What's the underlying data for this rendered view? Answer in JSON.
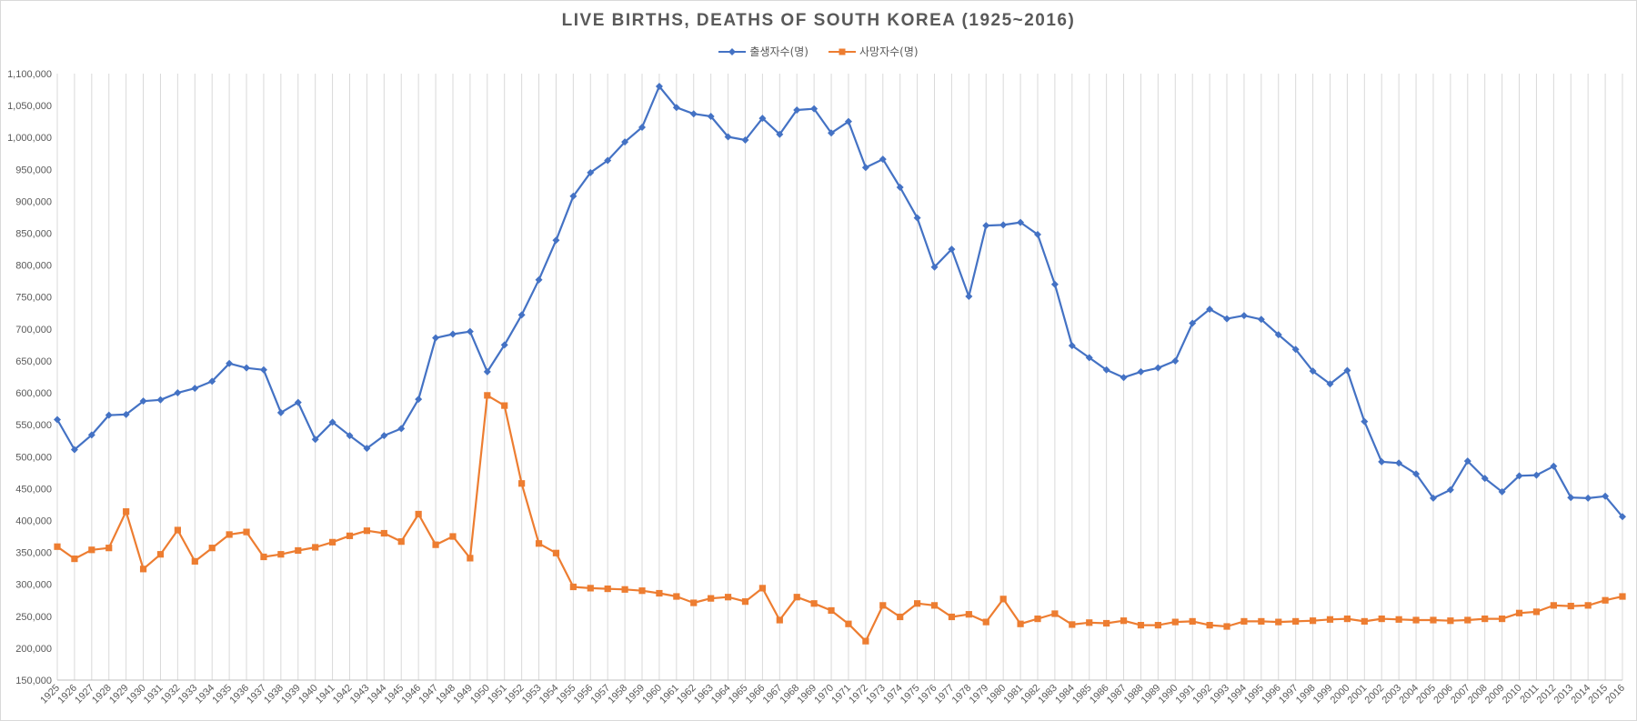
{
  "colors": {
    "births": "#4472c4",
    "deaths": "#ed7d31",
    "grid": "#d9d9d9"
  },
  "chart_data": {
    "type": "line",
    "title": "LIVE BIRTHS, DEATHS OF SOUTH KOREA (1925~2016)",
    "xlabel": "",
    "ylabel": "",
    "ylim": [
      150000,
      1100000
    ],
    "ytick_step": 50000,
    "grid": "vertical",
    "legend": "top-center",
    "x": [
      1925,
      1926,
      1927,
      1928,
      1929,
      1930,
      1931,
      1932,
      1933,
      1934,
      1935,
      1936,
      1937,
      1938,
      1939,
      1940,
      1941,
      1942,
      1943,
      1944,
      1945,
      1946,
      1947,
      1948,
      1949,
      1950,
      1951,
      1952,
      1953,
      1954,
      1955,
      1956,
      1957,
      1958,
      1959,
      1960,
      1961,
      1962,
      1963,
      1964,
      1965,
      1966,
      1967,
      1968,
      1969,
      1970,
      1971,
      1972,
      1973,
      1974,
      1975,
      1976,
      1977,
      1978,
      1979,
      1980,
      1981,
      1982,
      1983,
      1984,
      1985,
      1986,
      1987,
      1988,
      1989,
      1990,
      1991,
      1992,
      1993,
      1994,
      1995,
      1996,
      1997,
      1998,
      1999,
      2000,
      2001,
      2002,
      2003,
      2004,
      2005,
      2006,
      2007,
      2008,
      2009,
      2010,
      2011,
      2012,
      2013,
      2014,
      2015,
      2016
    ],
    "series": [
      {
        "name": "출생자수(명)",
        "marker": "diamond",
        "values": [
          558000,
          511000,
          534000,
          565000,
          566000,
          587000,
          589000,
          600000,
          607000,
          618000,
          646000,
          639000,
          636000,
          569000,
          585000,
          527000,
          554000,
          533000,
          513000,
          533000,
          544000,
          590000,
          686000,
          692000,
          696000,
          633000,
          675000,
          722000,
          777000,
          839000,
          908000,
          945000,
          964000,
          993000,
          1016000,
          1080000,
          1047000,
          1037000,
          1033000,
          1001000,
          996000,
          1030000,
          1005000,
          1043000,
          1045000,
          1007000,
          1025000,
          953000,
          966000,
          922000,
          874000,
          797000,
          825000,
          751000,
          862000,
          863000,
          867000,
          848000,
          770000,
          674000,
          655000,
          636000,
          624000,
          633000,
          639000,
          650000,
          709000,
          731000,
          716000,
          721000,
          715000,
          691000,
          668000,
          634000,
          614000,
          635000,
          555000,
          492000,
          490000,
          473000,
          435000,
          448000,
          493000,
          466000,
          445000,
          470000,
          471000,
          485000,
          436000,
          435000,
          438000,
          406000
        ]
      },
      {
        "name": "사망자수(명)",
        "marker": "square",
        "values": [
          359000,
          340000,
          354000,
          357000,
          414000,
          324000,
          347000,
          385000,
          336000,
          357000,
          378000,
          382000,
          343000,
          347000,
          353000,
          358000,
          366000,
          376000,
          384000,
          380000,
          367000,
          410000,
          362000,
          375000,
          341000,
          596000,
          580000,
          458000,
          364000,
          349000,
          296000,
          294000,
          293000,
          292000,
          290000,
          286000,
          281000,
          271000,
          278000,
          280000,
          273000,
          294000,
          244000,
          280000,
          270000,
          259000,
          238000,
          211000,
          267000,
          249000,
          270000,
          267000,
          249000,
          253000,
          241000,
          277000,
          238000,
          246000,
          254000,
          237000,
          240000,
          239000,
          243000,
          236000,
          236000,
          241000,
          242000,
          236000,
          234000,
          242000,
          242000,
          241000,
          242000,
          243000,
          245000,
          246000,
          242000,
          246000,
          245000,
          244000,
          244000,
          243000,
          244000,
          246000,
          246000,
          255000,
          257000,
          267000,
          266000,
          267000,
          275000,
          281000
        ]
      }
    ]
  }
}
